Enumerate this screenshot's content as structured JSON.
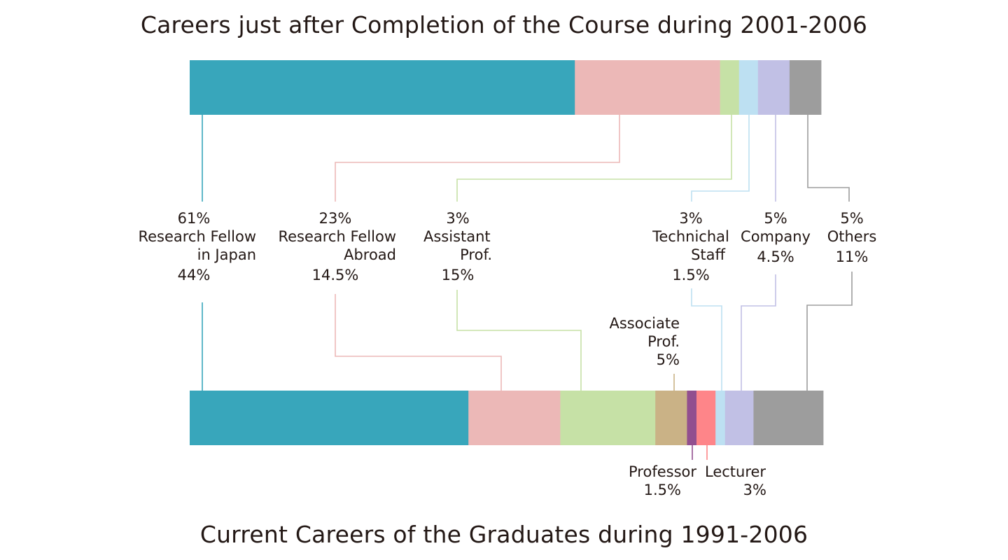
{
  "chart_data": [
    {
      "type": "stacked-bar",
      "title": "Careers just after Completion of the Course during 2001-2006",
      "segments": [
        {
          "key": "rf_japan",
          "label": "Research Fellow in Japan",
          "value": 61,
          "value_label": "61%",
          "color": "#38a6bb"
        },
        {
          "key": "rf_abroad",
          "label": "Research Fellow Abroad",
          "value": 23,
          "value_label": "23%",
          "color": "#ecb8b7"
        },
        {
          "key": "assistant",
          "label": "Assistant Prof.",
          "value": 3,
          "value_label": "3%",
          "color": "#c6e1a6"
        },
        {
          "key": "tech",
          "label": "Technichal Staff",
          "value": 3,
          "value_label": "3%",
          "color": "#bde0f2"
        },
        {
          "key": "company",
          "label": "Company",
          "value": 5,
          "value_label": "5%",
          "color": "#c1c0e5"
        },
        {
          "key": "others",
          "label": "Others",
          "value": 5,
          "value_label": "5%",
          "color": "#9d9d9d"
        }
      ]
    },
    {
      "type": "stacked-bar",
      "title": "Current Careers of the Graduates during 1991-2006",
      "segments": [
        {
          "key": "rf_japan",
          "label": "Research Fellow in Japan",
          "value": 44,
          "value_label": "44%",
          "color": "#38a6bb"
        },
        {
          "key": "rf_abroad",
          "label": "Research Fellow Abroad",
          "value": 14.5,
          "value_label": "14.5%",
          "color": "#ecb8b7"
        },
        {
          "key": "assistant",
          "label": "Assistant Prof.",
          "value": 15,
          "value_label": "15%",
          "color": "#c6e1a6"
        },
        {
          "key": "associate",
          "label": "Associate Prof.",
          "value": 5,
          "value_label": "5%",
          "color": "#cab286"
        },
        {
          "key": "professor",
          "label": "Professor",
          "value": 1.5,
          "value_label": "1.5%",
          "color": "#924f8f"
        },
        {
          "key": "lecturer",
          "label": "Lecturer",
          "value": 3,
          "value_label": "3%",
          "color": "#fe8589"
        },
        {
          "key": "tech",
          "label": "Technichal Staff",
          "value": 1.5,
          "value_label": "1.5%",
          "color": "#bde0f2"
        },
        {
          "key": "company",
          "label": "Company",
          "value": 4.5,
          "value_label": "4.5%",
          "color": "#c1c0e5"
        },
        {
          "key": "others",
          "label": "Others",
          "value": 11,
          "value_label": "11%",
          "color": "#9d9d9d"
        }
      ]
    }
  ],
  "category_labels": {
    "rf_japan": [
      "Research Fellow",
      "in Japan"
    ],
    "rf_abroad": [
      "Research Fellow",
      "Abroad"
    ],
    "assistant": [
      "Assistant",
      "Prof."
    ],
    "associate": [
      "Associate",
      "Prof."
    ],
    "professor": [
      "Professor"
    ],
    "lecturer": [
      "Lecturer"
    ],
    "tech": [
      "Technichal",
      "Staff"
    ],
    "company": [
      "Company"
    ],
    "others": [
      "Others"
    ]
  }
}
